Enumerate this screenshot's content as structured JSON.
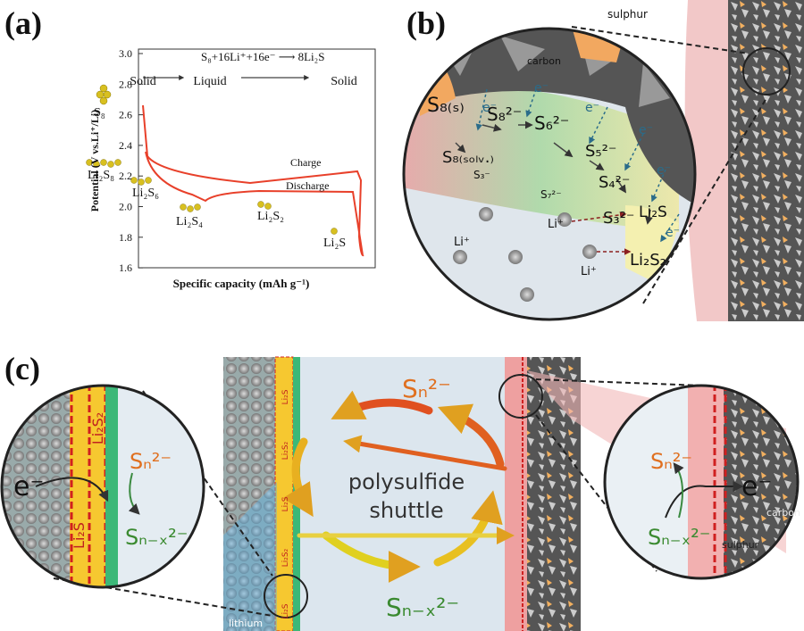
{
  "panel_a": {
    "label": "(a)",
    "equation": "S₈+16Li⁺+16e⁻ ⟶ 8Li₂S",
    "phases": [
      "Solid",
      "Liquid",
      "Solid"
    ],
    "y_axis_label": "Potential (V vs.Li⁺/Li)",
    "x_axis_label": "Specific capacity (mAh g⁻¹)",
    "yticks": [
      "3.0",
      "2.8",
      "2.6",
      "2.4",
      "2.2",
      "2.0",
      "1.8",
      "1.6"
    ],
    "curves": [
      "Charge",
      "Discharge"
    ],
    "species": [
      "S₈",
      "Li₂S₈",
      "Li₂S₆",
      "Li₂S₄",
      "Li₂S₂",
      "Li₂S"
    ]
  },
  "panel_b": {
    "label": "(b)",
    "materials": [
      "sulphur",
      "carbon"
    ],
    "species": [
      "S₈₍ₛ₎",
      "S₈₍ₛₒₗᵥ.₎",
      "S₈²⁻",
      "S₆²⁻",
      "S₅²⁻",
      "S₄²⁻",
      "S₃²⁻",
      "S₃⁻",
      "S₇²⁻",
      "Li₂S",
      "Li₂S₂"
    ],
    "ions": [
      "Li⁺",
      "Li⁺",
      "Li⁺"
    ],
    "electrons": [
      "e⁻",
      "e⁻",
      "e⁻",
      "e⁻",
      "e⁻",
      "e⁻"
    ]
  },
  "panel_c": {
    "label": "(c)",
    "shuttle": [
      "polysulfide",
      "shuttle"
    ],
    "top_species": "Sₙ²⁻",
    "bottom_species": "Sₙ₋ₓ²⁻",
    "anode": "lithium",
    "strip_labels": [
      "Li₂S",
      "Li₂S₂",
      "Li₂S",
      "Li₂S₂",
      "Li₂S"
    ],
    "left_zoom": {
      "layers": [
        "Li₂S₂",
        "Li₂S"
      ],
      "electron": "e⁻",
      "from": "Sₙ²⁻",
      "to": "Sₙ₋ₓ²⁻"
    },
    "right_zoom": {
      "from": "Sₙ₋ₓ²⁻",
      "to": "Sₙ²⁻",
      "electron": "e⁻",
      "materials": [
        "carbon",
        "sulphur"
      ]
    }
  }
}
